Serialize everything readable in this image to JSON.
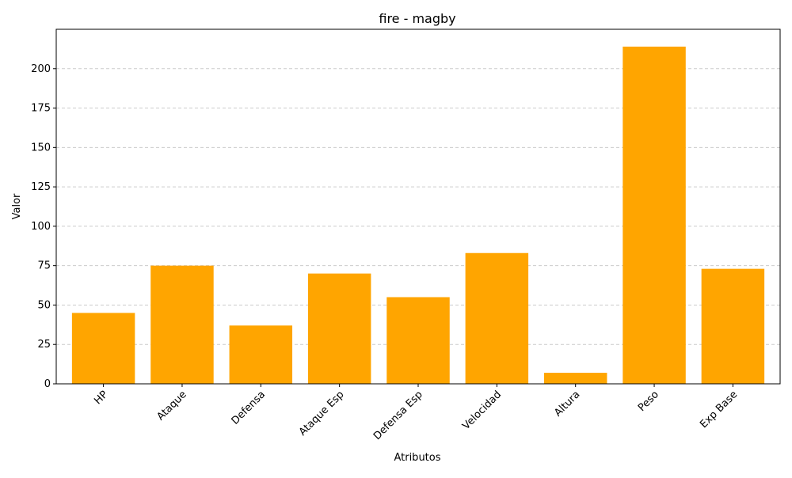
{
  "chart_data": {
    "type": "bar",
    "title": "fire - magby",
    "xlabel": "Atributos",
    "ylabel": "Valor",
    "categories": [
      "HP",
      "Ataque",
      "Defensa",
      "Ataque Esp",
      "Defensa Esp",
      "Velocidad",
      "Altura",
      "Peso",
      "Exp Base"
    ],
    "values": [
      45,
      75,
      37,
      70,
      55,
      83,
      7,
      214,
      73
    ],
    "ylim": [
      0,
      225
    ],
    "yticks": [
      0,
      25,
      50,
      75,
      100,
      125,
      150,
      175,
      200
    ],
    "bar_color": "#FFA500",
    "grid": "y-dashed",
    "x_tick_rotation": 45
  }
}
